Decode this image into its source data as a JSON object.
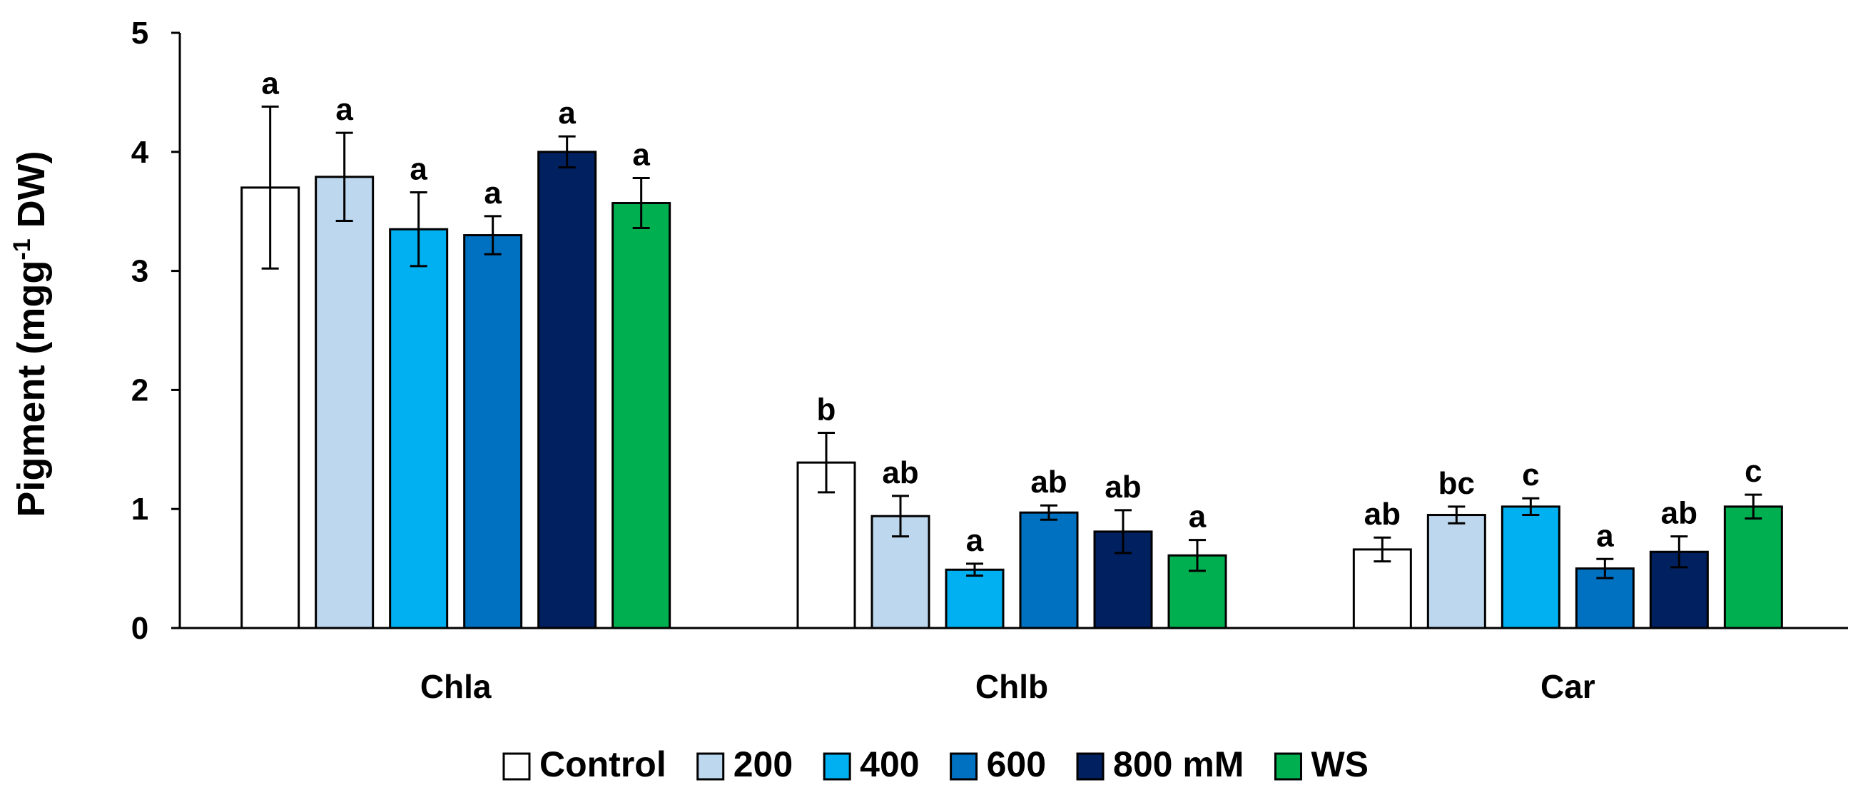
{
  "chart_data": {
    "type": "bar",
    "title": "",
    "xlabel": "",
    "ylabel": "Pigment (mgg",
    "ylabel_superscript": "-1",
    "ylabel_suffix": " DW)",
    "ylim": [
      0,
      5
    ],
    "yticks": [
      "0",
      "1",
      "2",
      "3",
      "4",
      "5"
    ],
    "grid": false,
    "legend_position": "bottom",
    "categories": [
      "Chla",
      "Chlb",
      "Car"
    ],
    "series": [
      {
        "name": "Control",
        "color": "#ffffff",
        "values": [
          3.7,
          1.39,
          0.66
        ],
        "errors": [
          0.68,
          0.25,
          0.1
        ],
        "labels": [
          "a",
          "b",
          "ab"
        ]
      },
      {
        "name": "200",
        "color": "#bdd7ee",
        "values": [
          3.79,
          0.94,
          0.95
        ],
        "errors": [
          0.37,
          0.17,
          0.07
        ],
        "labels": [
          "a",
          "ab",
          "bc"
        ]
      },
      {
        "name": "400",
        "color": "#00b0f0",
        "values": [
          3.35,
          0.49,
          1.02
        ],
        "errors": [
          0.31,
          0.05,
          0.07
        ],
        "labels": [
          "a",
          "a",
          "c"
        ]
      },
      {
        "name": "600",
        "color": "#0070c0",
        "values": [
          3.3,
          0.97,
          0.5
        ],
        "errors": [
          0.16,
          0.06,
          0.08
        ],
        "labels": [
          "a",
          "ab",
          "a"
        ]
      },
      {
        "name": "800 mM",
        "color": "#002060",
        "values": [
          4.0,
          0.81,
          0.64
        ],
        "errors": [
          0.13,
          0.18,
          0.13
        ],
        "labels": [
          "a",
          "ab",
          "ab"
        ]
      },
      {
        "name": "WS",
        "color": "#00b050",
        "values": [
          3.57,
          0.61,
          1.02
        ],
        "errors": [
          0.21,
          0.13,
          0.1
        ],
        "labels": [
          "a",
          "a",
          "c"
        ]
      }
    ]
  }
}
